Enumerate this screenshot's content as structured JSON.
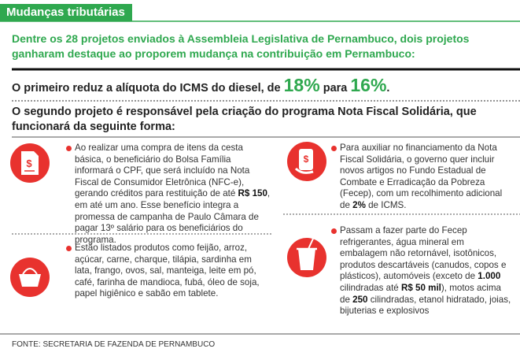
{
  "header": {
    "title": "Mudanças tributárias"
  },
  "intro": "Dentre os 28 projetos enviados à Assembleia Legislativa de Pernambuco, dois projetos ganharam destaque ao proporem mudança na contribuição em Pernambuco:",
  "first_project": {
    "parts": [
      {
        "text": "O primeiro reduz a alíquota do ICMS do diesel, de "
      },
      {
        "text": "18%",
        "highlight": true
      },
      {
        "text": " para "
      },
      {
        "text": "16%",
        "highlight": true
      },
      {
        "text": "."
      }
    ]
  },
  "second_project": "O segundo projeto é responsável pela criação do programa Nota Fiscal Solidária, que funcionará da seguinte forma:",
  "items": [
    {
      "parts": [
        {
          "text": "Ao realizar uma compra de itens da cesta básica, o beneficiário do Bolsa Família informará o CPF, que será incluído na Nota Fiscal de Consumidor Eletrônica (NFC-e), gerando créditos para restituição de até "
        },
        {
          "text": "R$ 150",
          "bold": true
        },
        {
          "text": ", em até um ano. Esse benefício integra a promessa de campanha de Paulo Câmara de pagar 13º salário para os beneficiários do programa."
        }
      ]
    },
    {
      "parts": [
        {
          "text": "Para auxiliar no financiamento da Nota Fiscal Solidária, o governo quer incluir novos artigos no Fundo Estadual de Combate e Erradicação da Pobreza (Fecep), com um recolhimento adicional de "
        },
        {
          "text": "2%",
          "bold": true
        },
        {
          "text": " de ICMS."
        }
      ]
    },
    {
      "parts": [
        {
          "text": "Estão listados produtos como feijão, arroz, açúcar, carne, charque, tilápia, sardinha em lata, frango, ovos, sal, manteiga, leite em pó, café, farinha de mandioca, fubá, óleo de soja, papel higiênico e sabão em tablete."
        }
      ]
    },
    {
      "parts": [
        {
          "text": "Passam a fazer parte do Fecep refrigerantes, água mineral em embalagem não retornável, isotônicos, produtos descartáveis (canudos, copos e plásticos), automóveis (exceto de "
        },
        {
          "text": "1.000",
          "bold": true
        },
        {
          "text": " cilindradas até "
        },
        {
          "text": "R$ 50 mil",
          "bold": true
        },
        {
          "text": "), motos acima de "
        },
        {
          "text": "250",
          "bold": true
        },
        {
          "text": " cilindradas, etanol hidratado, joias, bijuterias e explosivos"
        }
      ]
    }
  ],
  "source": "FONTE: SECRETARIA DE FAZENDA DE PERNAMBUCO"
}
